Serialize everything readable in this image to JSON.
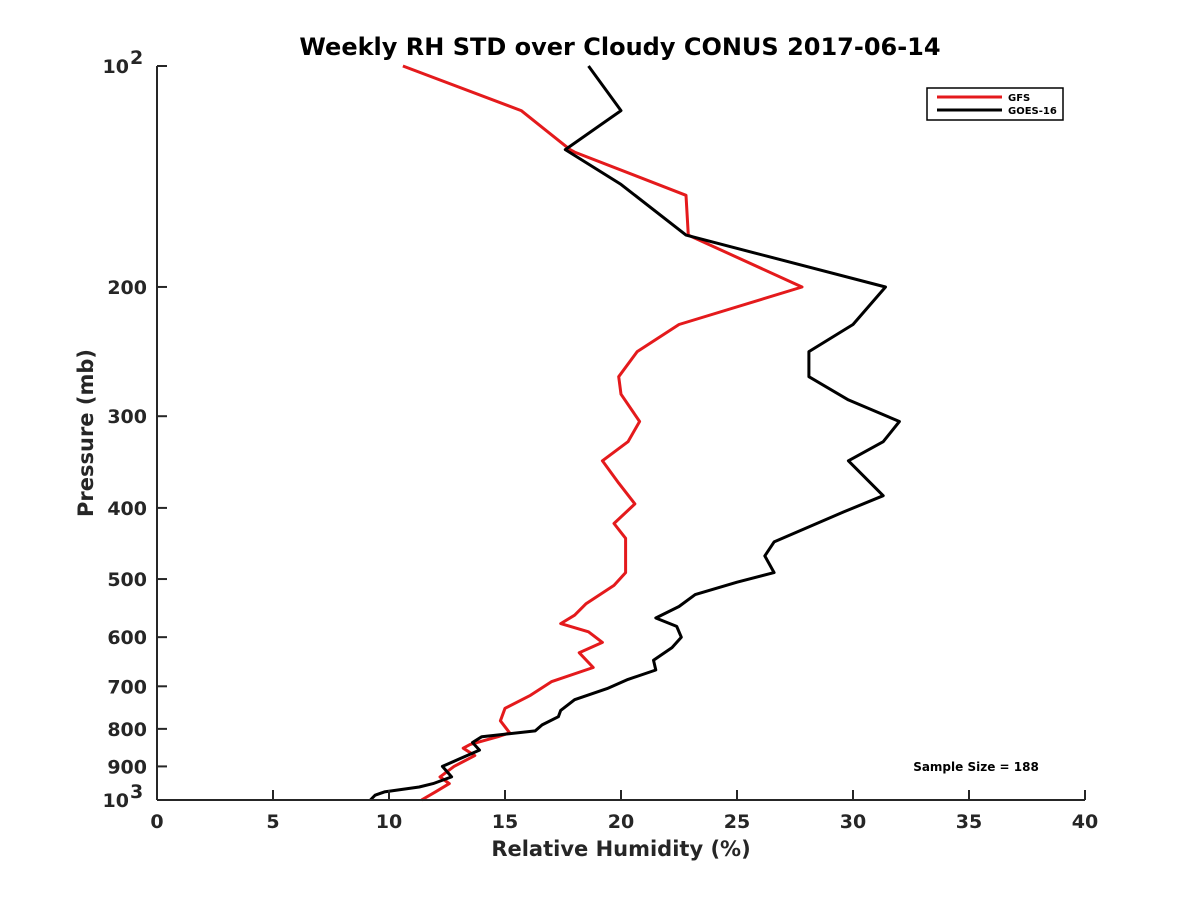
{
  "chart_data": {
    "type": "line",
    "title": "Weekly RH STD over Cloudy CONUS 2017-06-14",
    "xlabel": "Relative Humidity (%)",
    "ylabel": "Pressure (mb)",
    "xlim": [
      0,
      40
    ],
    "ylim": [
      100,
      1000
    ],
    "y_scale": "log",
    "y_reversed": true,
    "x_ticks": [
      "0",
      "5",
      "10",
      "15",
      "20",
      "25",
      "30",
      "35",
      "40"
    ],
    "y_tick_values": [
      100,
      200,
      300,
      400,
      500,
      600,
      700,
      800,
      900,
      1000
    ],
    "y_ticks": [
      "10",
      "200",
      "300",
      "400",
      "500",
      "600",
      "700",
      "800",
      "900",
      "10"
    ],
    "y_tick_superscripts": [
      "2",
      "",
      "",
      "",
      "",
      "",
      "",
      "",
      "",
      "3"
    ],
    "grid": false,
    "legend_position": "top-right",
    "annotation": "Sample Size = 188",
    "series": [
      {
        "name": "GFS",
        "color": "#e41a1c",
        "points": [
          [
            10.6,
            100
          ],
          [
            15.7,
            115
          ],
          [
            17.8,
            130
          ],
          [
            18.0,
            131
          ],
          [
            22.8,
            150
          ],
          [
            22.9,
            170
          ],
          [
            27.8,
            200
          ],
          [
            22.5,
            225
          ],
          [
            20.7,
            245
          ],
          [
            19.9,
            265
          ],
          [
            20.0,
            280
          ],
          [
            20.8,
            305
          ],
          [
            20.3,
            325
          ],
          [
            19.2,
            345
          ],
          [
            19.9,
            370
          ],
          [
            20.6,
            395
          ],
          [
            19.7,
            420
          ],
          [
            20.2,
            440
          ],
          [
            20.2,
            465
          ],
          [
            20.2,
            490
          ],
          [
            19.7,
            510
          ],
          [
            18.5,
            540
          ],
          [
            18.0,
            560
          ],
          [
            17.4,
            575
          ],
          [
            18.6,
            590
          ],
          [
            19.2,
            610
          ],
          [
            18.2,
            630
          ],
          [
            18.8,
            660
          ],
          [
            17.0,
            690
          ],
          [
            16.1,
            720
          ],
          [
            15.0,
            750
          ],
          [
            14.8,
            780
          ],
          [
            15.2,
            810
          ],
          [
            14.7,
            820
          ],
          [
            13.5,
            840
          ],
          [
            13.2,
            850
          ],
          [
            13.7,
            870
          ],
          [
            12.8,
            900
          ],
          [
            12.2,
            930
          ],
          [
            12.6,
            950
          ],
          [
            12.0,
            975
          ],
          [
            11.4,
            1000
          ]
        ]
      },
      {
        "name": "GOES-16",
        "color": "#000000",
        "points": [
          [
            18.6,
            100
          ],
          [
            20.0,
            115
          ],
          [
            17.6,
            130
          ],
          [
            20.0,
            145
          ],
          [
            22.8,
            170
          ],
          [
            31.4,
            200
          ],
          [
            30.0,
            225
          ],
          [
            28.1,
            245
          ],
          [
            28.1,
            265
          ],
          [
            29.8,
            285
          ],
          [
            32.0,
            305
          ],
          [
            31.3,
            325
          ],
          [
            29.8,
            345
          ],
          [
            31.3,
            385
          ],
          [
            29.6,
            405
          ],
          [
            26.6,
            445
          ],
          [
            26.2,
            465
          ],
          [
            26.6,
            490
          ],
          [
            25.0,
            505
          ],
          [
            23.2,
            525
          ],
          [
            22.5,
            545
          ],
          [
            21.5,
            565
          ],
          [
            22.4,
            580
          ],
          [
            22.6,
            600
          ],
          [
            22.2,
            620
          ],
          [
            21.4,
            645
          ],
          [
            21.5,
            665
          ],
          [
            20.3,
            685
          ],
          [
            19.4,
            705
          ],
          [
            18.0,
            730
          ],
          [
            17.4,
            755
          ],
          [
            17.3,
            770
          ],
          [
            16.6,
            790
          ],
          [
            16.3,
            805
          ],
          [
            14.0,
            820
          ],
          [
            13.6,
            835
          ],
          [
            13.9,
            855
          ],
          [
            13.0,
            880
          ],
          [
            12.3,
            900
          ],
          [
            12.7,
            930
          ],
          [
            11.9,
            950
          ],
          [
            11.3,
            960
          ],
          [
            9.8,
            975
          ],
          [
            9.4,
            985
          ],
          [
            9.2,
            1000
          ]
        ]
      }
    ]
  }
}
